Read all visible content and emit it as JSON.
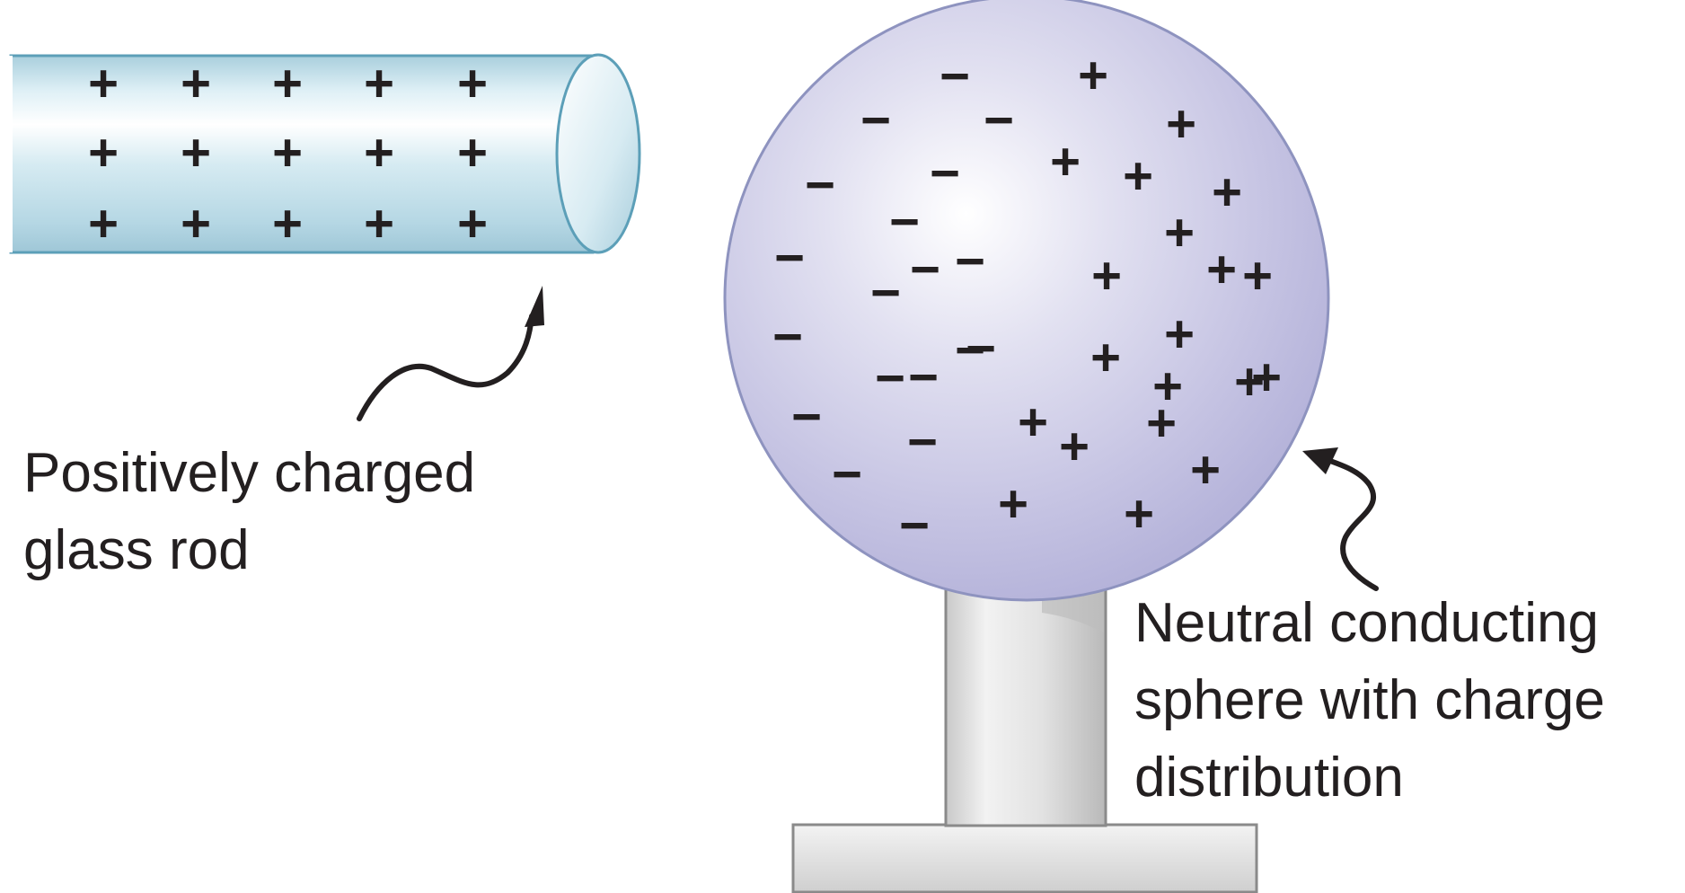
{
  "rod": {
    "label_lines": [
      "Positively charged",
      "glass rod"
    ],
    "charge_symbol": "+",
    "charge_rows": 3,
    "charge_columns": 5,
    "pointer_icon": "curved-arrow-icon"
  },
  "sphere": {
    "label_lines": [
      "Neutral conducting",
      "sphere with charge",
      "distribution"
    ],
    "negative_symbol": "−",
    "positive_symbol": "+",
    "negative_count": 19,
    "positive_count": 20,
    "pointer_icon": "curved-arrow-icon"
  },
  "colors": {
    "rod_fill": "#c9e3ec",
    "rod_outline": "#5c9fb8",
    "sphere_fill": "#c5c3e2",
    "sphere_highlight": "#ffffff",
    "sphere_outline": "#8e93bf",
    "stand_fill": "#e4e4e4",
    "stand_outline": "#8a8a8a",
    "ink": "#231f20"
  }
}
